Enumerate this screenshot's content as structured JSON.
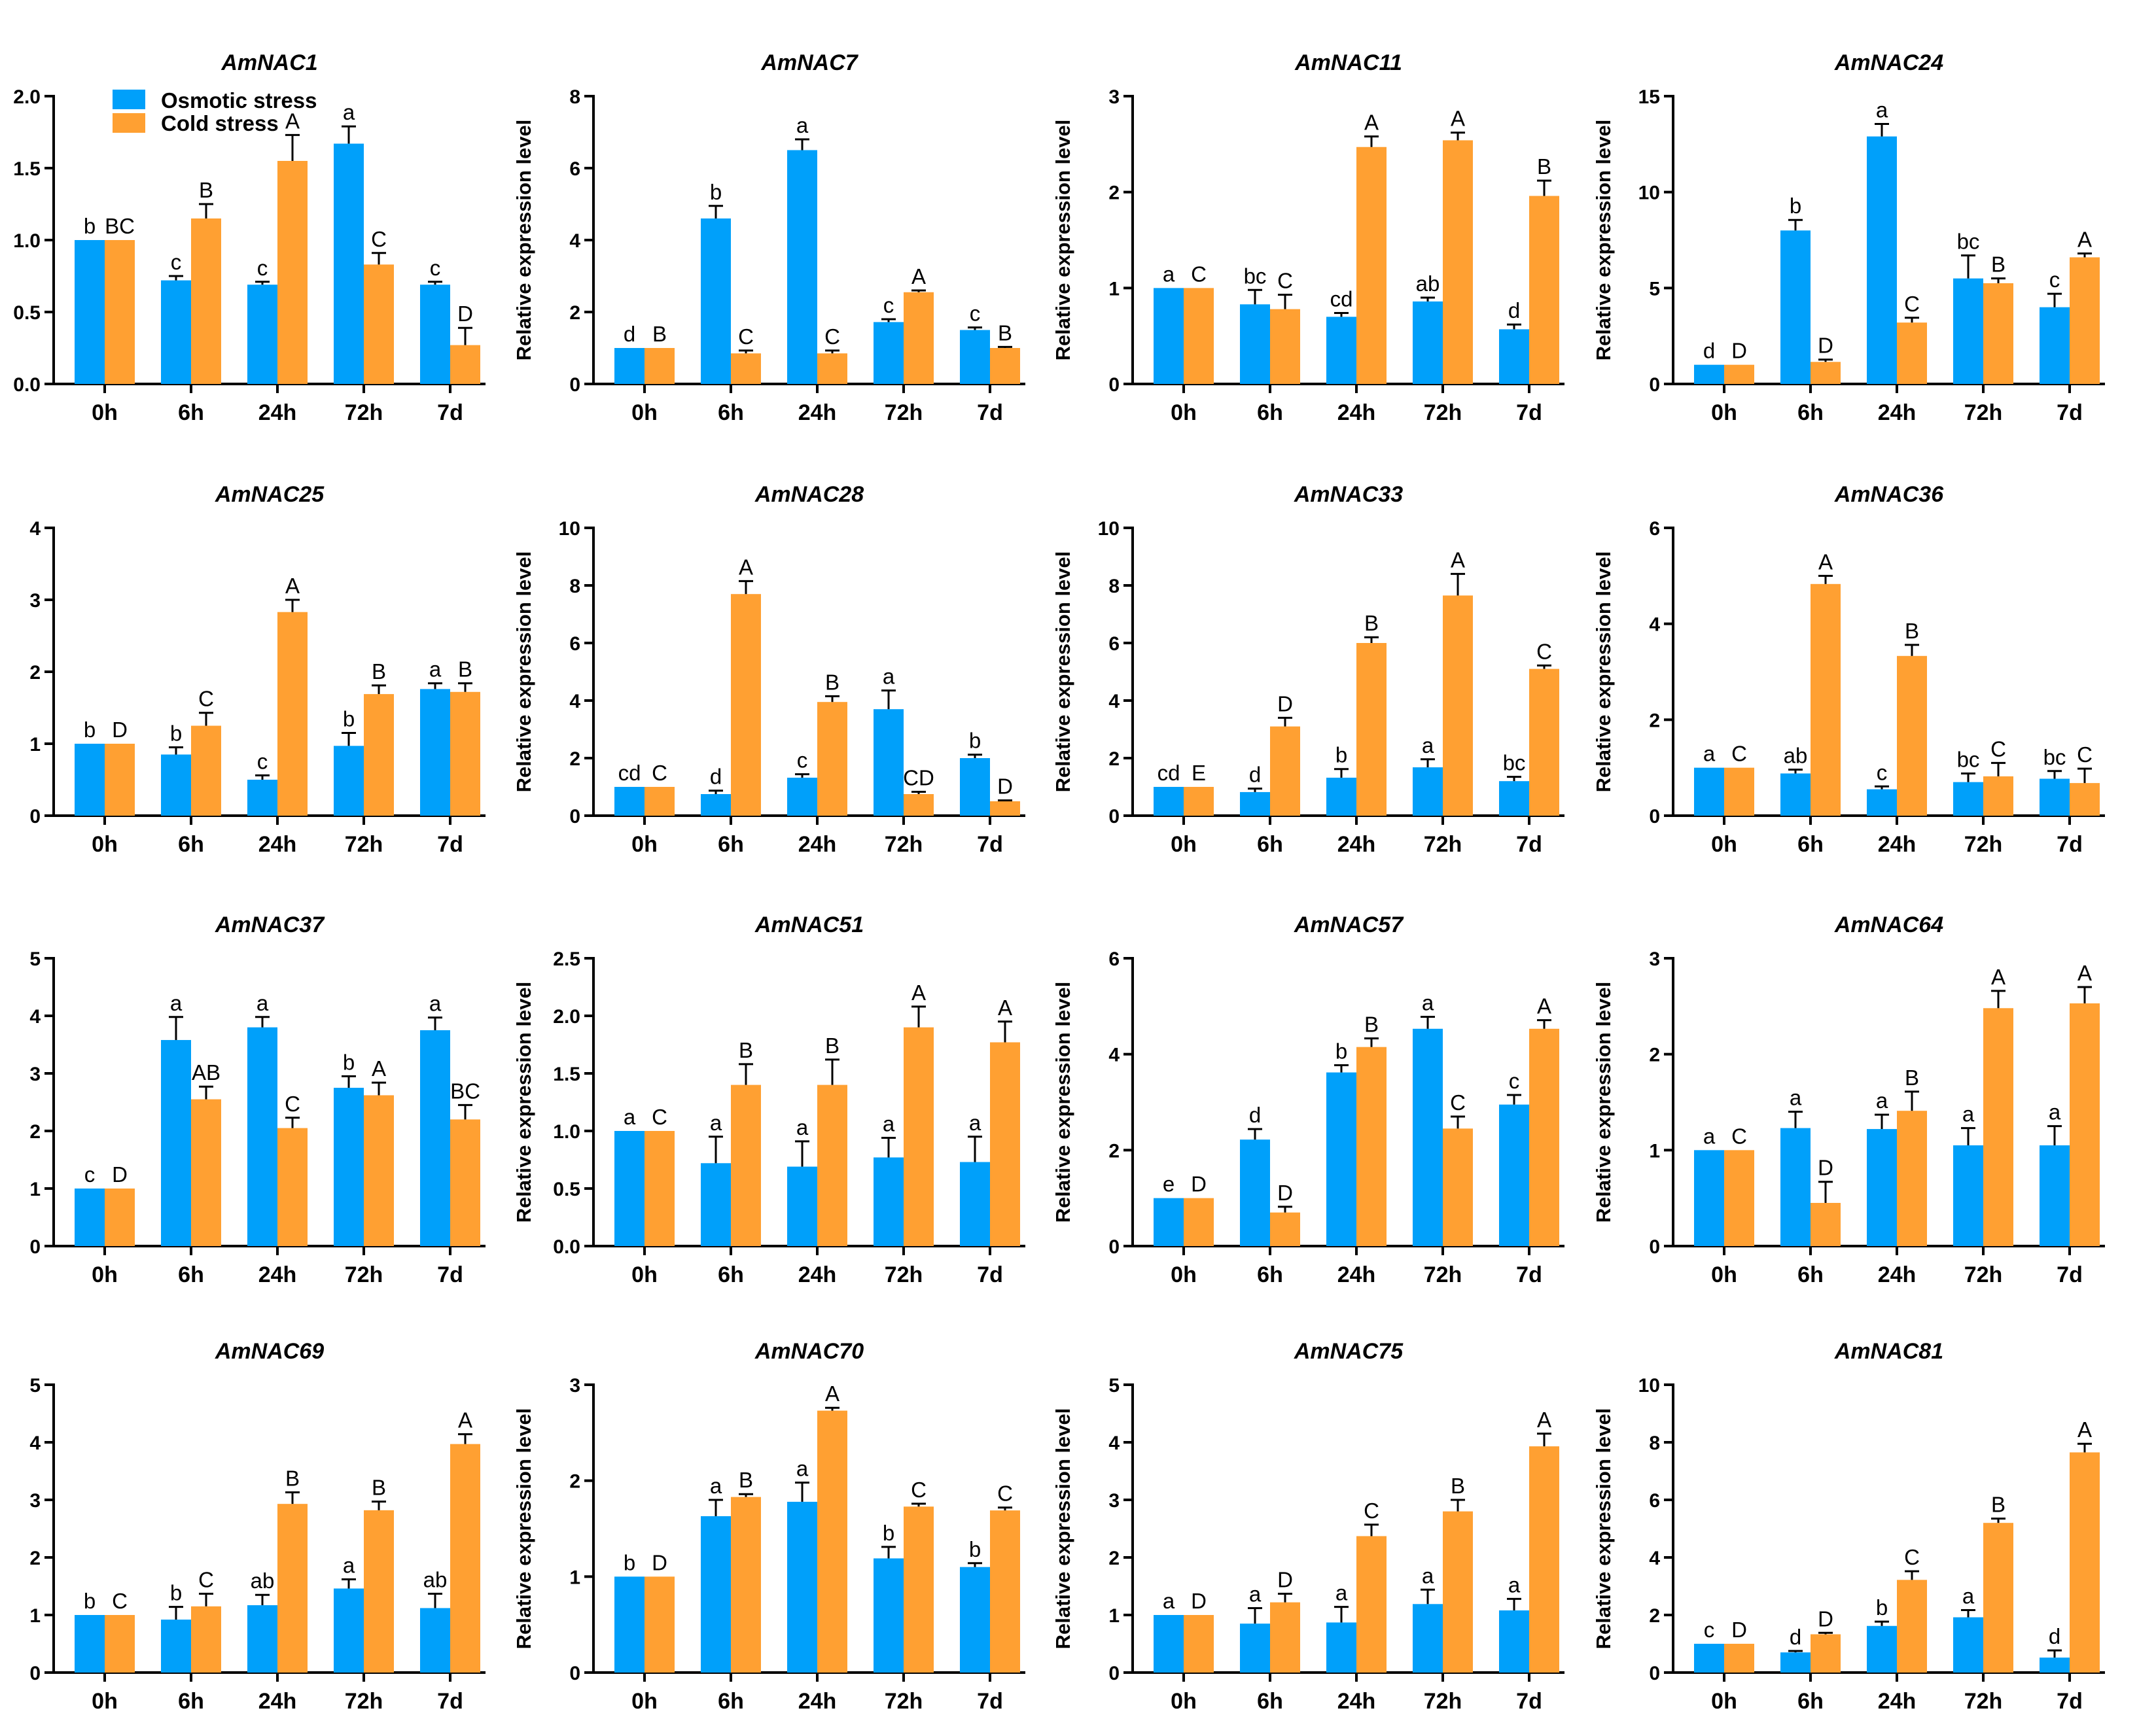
{
  "figure": {
    "ylabel": "Relative expression level",
    "categories": [
      "0h",
      "6h",
      "24h",
      "72h",
      "7d"
    ],
    "legend": [
      {
        "label": "Osmotic stress",
        "color": "#00A0FA"
      },
      {
        "label": "Cold stress",
        "color": "#FFA032"
      }
    ]
  },
  "chart_data": [
    {
      "type": "bar",
      "title": "AmNAC1",
      "ylim": [
        0,
        2.0
      ],
      "yticks": [
        "0.0",
        "0.5",
        "1.0",
        "1.5",
        "2.0"
      ],
      "categories": [
        "0h",
        "6h",
        "24h",
        "72h",
        "7d"
      ],
      "series": [
        {
          "name": "Osmotic stress",
          "values": [
            1.0,
            0.72,
            0.69,
            1.67,
            0.69
          ],
          "errors": [
            0,
            0.03,
            0.02,
            0.12,
            0.02
          ],
          "letters": [
            "b",
            "c",
            "c",
            "a",
            "c"
          ]
        },
        {
          "name": "Cold stress",
          "values": [
            1.0,
            1.15,
            1.55,
            0.83,
            0.27
          ],
          "errors": [
            0,
            0.1,
            0.18,
            0.08,
            0.12
          ],
          "letters": [
            "BC",
            "B",
            "A",
            "C",
            "D"
          ]
        }
      ]
    },
    {
      "type": "bar",
      "title": "AmNAC7",
      "ylim": [
        0,
        8
      ],
      "yticks": [
        "0",
        "2",
        "4",
        "6",
        "8"
      ],
      "categories": [
        "0h",
        "6h",
        "24h",
        "72h",
        "7d"
      ],
      "series": [
        {
          "name": "Osmotic stress",
          "values": [
            1.0,
            4.6,
            6.5,
            1.72,
            1.5
          ],
          "errors": [
            0,
            0.35,
            0.3,
            0.08,
            0.07
          ],
          "letters": [
            "d",
            "b",
            "a",
            "c",
            "c"
          ]
        },
        {
          "name": "Cold stress",
          "values": [
            1.0,
            0.85,
            0.85,
            2.55,
            1.0
          ],
          "errors": [
            0,
            0.08,
            0.08,
            0.05,
            0.03
          ],
          "letters": [
            "B",
            "C",
            "C",
            "A",
            "B"
          ]
        }
      ]
    },
    {
      "type": "bar",
      "title": "AmNAC11",
      "ylim": [
        0,
        3
      ],
      "yticks": [
        "0",
        "1",
        "2",
        "3"
      ],
      "categories": [
        "0h",
        "6h",
        "24h",
        "72h",
        "7d"
      ],
      "series": [
        {
          "name": "Osmotic stress",
          "values": [
            1.0,
            0.83,
            0.7,
            0.86,
            0.57
          ],
          "errors": [
            0,
            0.15,
            0.04,
            0.04,
            0.05
          ],
          "letters": [
            "a",
            "bc",
            "cd",
            "ab",
            "d"
          ]
        },
        {
          "name": "Cold stress",
          "values": [
            1.0,
            0.78,
            2.47,
            2.54,
            1.96
          ],
          "errors": [
            0,
            0.15,
            0.11,
            0.08,
            0.16
          ],
          "letters": [
            "C",
            "C",
            "A",
            "A",
            "B"
          ]
        }
      ]
    },
    {
      "type": "bar",
      "title": "AmNAC24",
      "ylim": [
        0,
        15
      ],
      "yticks": [
        "0",
        "5",
        "10",
        "15"
      ],
      "categories": [
        "0h",
        "6h",
        "24h",
        "72h",
        "7d"
      ],
      "series": [
        {
          "name": "Osmotic stress",
          "values": [
            1.0,
            8.0,
            12.9,
            5.5,
            4.0
          ],
          "errors": [
            0,
            0.55,
            0.65,
            1.2,
            0.7
          ],
          "letters": [
            "d",
            "b",
            "a",
            "bc",
            "c"
          ]
        },
        {
          "name": "Cold stress",
          "values": [
            1.0,
            1.15,
            3.2,
            5.25,
            6.6
          ],
          "errors": [
            0,
            0.12,
            0.25,
            0.25,
            0.2
          ],
          "letters": [
            "D",
            "D",
            "C",
            "B",
            "A"
          ]
        }
      ]
    },
    {
      "type": "bar",
      "title": "AmNAC25",
      "ylim": [
        0,
        4
      ],
      "yticks": [
        "0",
        "1",
        "2",
        "3",
        "4"
      ],
      "categories": [
        "0h",
        "6h",
        "24h",
        "72h",
        "7d"
      ],
      "series": [
        {
          "name": "Osmotic stress",
          "values": [
            1.0,
            0.85,
            0.5,
            0.97,
            1.76
          ],
          "errors": [
            0,
            0.1,
            0.06,
            0.18,
            0.08
          ],
          "letters": [
            "b",
            "b",
            "c",
            "b",
            "a"
          ]
        },
        {
          "name": "Cold stress",
          "values": [
            1.0,
            1.25,
            2.83,
            1.69,
            1.72
          ],
          "errors": [
            0,
            0.18,
            0.17,
            0.12,
            0.12
          ],
          "letters": [
            "D",
            "C",
            "A",
            "B",
            "B"
          ]
        }
      ]
    },
    {
      "type": "bar",
      "title": "AmNAC28",
      "ylim": [
        0,
        10
      ],
      "yticks": [
        "0",
        "2",
        "4",
        "6",
        "8",
        "10"
      ],
      "categories": [
        "0h",
        "6h",
        "24h",
        "72h",
        "7d"
      ],
      "series": [
        {
          "name": "Osmotic stress",
          "values": [
            1.0,
            0.75,
            1.32,
            3.7,
            2.0
          ],
          "errors": [
            0,
            0.12,
            0.12,
            0.65,
            0.12
          ],
          "letters": [
            "cd",
            "d",
            "c",
            "a",
            "b"
          ]
        },
        {
          "name": "Cold stress",
          "values": [
            1.0,
            7.7,
            3.95,
            0.75,
            0.5
          ],
          "errors": [
            0,
            0.45,
            0.2,
            0.08,
            0.03
          ],
          "letters": [
            "C",
            "A",
            "B",
            "CD",
            "D"
          ]
        }
      ]
    },
    {
      "type": "bar",
      "title": "AmNAC33",
      "ylim": [
        0,
        10
      ],
      "yticks": [
        "0",
        "2",
        "4",
        "6",
        "8",
        "10"
      ],
      "categories": [
        "0h",
        "6h",
        "24h",
        "72h",
        "7d"
      ],
      "series": [
        {
          "name": "Osmotic stress",
          "values": [
            1.0,
            0.82,
            1.32,
            1.68,
            1.2
          ],
          "errors": [
            0,
            0.12,
            0.3,
            0.28,
            0.15
          ],
          "letters": [
            "cd",
            "d",
            "b",
            "a",
            "bc"
          ]
        },
        {
          "name": "Cold stress",
          "values": [
            1.0,
            3.1,
            6.0,
            7.65,
            5.1
          ],
          "errors": [
            0,
            0.3,
            0.2,
            0.75,
            0.12
          ],
          "letters": [
            "E",
            "D",
            "B",
            "A",
            "C"
          ]
        }
      ]
    },
    {
      "type": "bar",
      "title": "AmNAC36",
      "ylim": [
        0,
        6
      ],
      "yticks": [
        "0",
        "2",
        "4",
        "6"
      ],
      "categories": [
        "0h",
        "6h",
        "24h",
        "72h",
        "7d"
      ],
      "series": [
        {
          "name": "Osmotic stress",
          "values": [
            1.0,
            0.88,
            0.55,
            0.7,
            0.77
          ],
          "errors": [
            0,
            0.08,
            0.06,
            0.18,
            0.16
          ],
          "letters": [
            "a",
            "ab",
            "c",
            "bc",
            "bc"
          ]
        },
        {
          "name": "Cold stress",
          "values": [
            1.0,
            4.83,
            3.33,
            0.82,
            0.68
          ],
          "errors": [
            0,
            0.17,
            0.23,
            0.28,
            0.3
          ],
          "letters": [
            "C",
            "A",
            "B",
            "C",
            "C"
          ]
        }
      ]
    },
    {
      "type": "bar",
      "title": "AmNAC37",
      "ylim": [
        0,
        5
      ],
      "yticks": [
        "0",
        "1",
        "2",
        "3",
        "4",
        "5"
      ],
      "categories": [
        "0h",
        "6h",
        "24h",
        "72h",
        "7d"
      ],
      "series": [
        {
          "name": "Osmotic stress",
          "values": [
            1.0,
            3.58,
            3.8,
            2.75,
            3.75
          ],
          "errors": [
            0,
            0.4,
            0.18,
            0.2,
            0.22
          ],
          "letters": [
            "c",
            "a",
            "a",
            "b",
            "a"
          ]
        },
        {
          "name": "Cold stress",
          "values": [
            1.0,
            2.55,
            2.05,
            2.62,
            2.2
          ],
          "errors": [
            0,
            0.22,
            0.18,
            0.22,
            0.25
          ],
          "letters": [
            "D",
            "AB",
            "C",
            "A",
            "BC"
          ]
        }
      ]
    },
    {
      "type": "bar",
      "title": "AmNAC51",
      "ylim": [
        0,
        2.5
      ],
      "yticks": [
        "0.0",
        "0.5",
        "1.0",
        "1.5",
        "2.0",
        "2.5"
      ],
      "categories": [
        "0h",
        "6h",
        "24h",
        "72h",
        "7d"
      ],
      "series": [
        {
          "name": "Osmotic stress",
          "values": [
            1.0,
            0.72,
            0.69,
            0.77,
            0.73
          ],
          "errors": [
            0,
            0.23,
            0.22,
            0.17,
            0.22
          ],
          "letters": [
            "a",
            "a",
            "a",
            "a",
            "a"
          ]
        },
        {
          "name": "Cold stress",
          "values": [
            1.0,
            1.4,
            1.4,
            1.9,
            1.77
          ],
          "errors": [
            0,
            0.18,
            0.22,
            0.18,
            0.18
          ],
          "letters": [
            "C",
            "B",
            "B",
            "A",
            "A"
          ]
        }
      ]
    },
    {
      "type": "bar",
      "title": "AmNAC57",
      "ylim": [
        0,
        6
      ],
      "yticks": [
        "0",
        "2",
        "4",
        "6"
      ],
      "categories": [
        "0h",
        "6h",
        "24h",
        "72h",
        "7d"
      ],
      "series": [
        {
          "name": "Osmotic stress",
          "values": [
            1.0,
            2.22,
            3.62,
            4.53,
            2.95
          ],
          "errors": [
            0,
            0.22,
            0.15,
            0.25,
            0.2
          ],
          "letters": [
            "e",
            "d",
            "b",
            "a",
            "c"
          ]
        },
        {
          "name": "Cold stress",
          "values": [
            1.0,
            0.7,
            4.15,
            2.45,
            4.53
          ],
          "errors": [
            0,
            0.12,
            0.18,
            0.25,
            0.18
          ],
          "letters": [
            "D",
            "D",
            "B",
            "C",
            "A"
          ]
        }
      ]
    },
    {
      "type": "bar",
      "title": "AmNAC64",
      "ylim": [
        0,
        3
      ],
      "yticks": [
        "0",
        "1",
        "2",
        "3"
      ],
      "categories": [
        "0h",
        "6h",
        "24h",
        "72h",
        "7d"
      ],
      "series": [
        {
          "name": "Osmotic stress",
          "values": [
            1.0,
            1.23,
            1.22,
            1.05,
            1.05
          ],
          "errors": [
            0,
            0.17,
            0.15,
            0.18,
            0.2
          ],
          "letters": [
            "a",
            "a",
            "a",
            "a",
            "a"
          ]
        },
        {
          "name": "Cold stress",
          "values": [
            1.0,
            0.45,
            1.41,
            2.48,
            2.53
          ],
          "errors": [
            0,
            0.22,
            0.2,
            0.18,
            0.17
          ],
          "letters": [
            "C",
            "D",
            "B",
            "A",
            "A"
          ]
        }
      ]
    },
    {
      "type": "bar",
      "title": "AmNAC69",
      "ylim": [
        0,
        5
      ],
      "yticks": [
        "0",
        "1",
        "2",
        "3",
        "4",
        "5"
      ],
      "categories": [
        "0h",
        "6h",
        "24h",
        "72h",
        "7d"
      ],
      "series": [
        {
          "name": "Osmotic stress",
          "values": [
            1.0,
            0.92,
            1.17,
            1.46,
            1.12
          ],
          "errors": [
            0,
            0.22,
            0.18,
            0.16,
            0.25
          ],
          "letters": [
            "b",
            "b",
            "ab",
            "a",
            "ab"
          ]
        },
        {
          "name": "Cold stress",
          "values": [
            1.0,
            1.15,
            2.93,
            2.82,
            3.97
          ],
          "errors": [
            0,
            0.22,
            0.2,
            0.15,
            0.17
          ],
          "letters": [
            "C",
            "C",
            "B",
            "B",
            "A"
          ]
        }
      ]
    },
    {
      "type": "bar",
      "title": "AmNAC70",
      "ylim": [
        0,
        3
      ],
      "yticks": [
        "0",
        "1",
        "2",
        "3"
      ],
      "categories": [
        "0h",
        "6h",
        "24h",
        "72h",
        "7d"
      ],
      "series": [
        {
          "name": "Osmotic stress",
          "values": [
            1.0,
            1.63,
            1.78,
            1.19,
            1.1
          ],
          "errors": [
            0,
            0.17,
            0.2,
            0.12,
            0.04
          ],
          "letters": [
            "b",
            "a",
            "a",
            "b",
            "b"
          ]
        },
        {
          "name": "Cold stress",
          "values": [
            1.0,
            1.83,
            2.73,
            1.73,
            1.69
          ],
          "errors": [
            0,
            0.03,
            0.03,
            0.03,
            0.03
          ],
          "letters": [
            "D",
            "B",
            "A",
            "C",
            "C"
          ]
        }
      ]
    },
    {
      "type": "bar",
      "title": "AmNAC75",
      "ylim": [
        0,
        5
      ],
      "yticks": [
        "0",
        "1",
        "2",
        "3",
        "4",
        "5"
      ],
      "categories": [
        "0h",
        "6h",
        "24h",
        "72h",
        "7d"
      ],
      "series": [
        {
          "name": "Osmotic stress",
          "values": [
            1.0,
            0.85,
            0.87,
            1.19,
            1.08
          ],
          "errors": [
            0,
            0.27,
            0.27,
            0.25,
            0.2
          ],
          "letters": [
            "a",
            "a",
            "a",
            "a",
            "a"
          ]
        },
        {
          "name": "Cold stress",
          "values": [
            1.0,
            1.22,
            2.37,
            2.8,
            3.93
          ],
          "errors": [
            0,
            0.15,
            0.2,
            0.2,
            0.22
          ],
          "letters": [
            "D",
            "D",
            "C",
            "B",
            "A"
          ]
        }
      ]
    },
    {
      "type": "bar",
      "title": "AmNAC81",
      "ylim": [
        0,
        10
      ],
      "yticks": [
        "0",
        "2",
        "4",
        "6",
        "8",
        "10"
      ],
      "categories": [
        "0h",
        "6h",
        "24h",
        "72h",
        "7d"
      ],
      "series": [
        {
          "name": "Osmotic stress",
          "values": [
            1.0,
            0.7,
            1.62,
            1.92,
            0.52
          ],
          "errors": [
            0,
            0.05,
            0.15,
            0.25,
            0.25
          ],
          "letters": [
            "c",
            "d",
            "b",
            "a",
            "d"
          ]
        },
        {
          "name": "Cold stress",
          "values": [
            1.0,
            1.33,
            3.22,
            5.2,
            7.65
          ],
          "errors": [
            0,
            0.05,
            0.3,
            0.15,
            0.3
          ],
          "letters": [
            "D",
            "D",
            "C",
            "B",
            "A"
          ]
        }
      ]
    }
  ]
}
